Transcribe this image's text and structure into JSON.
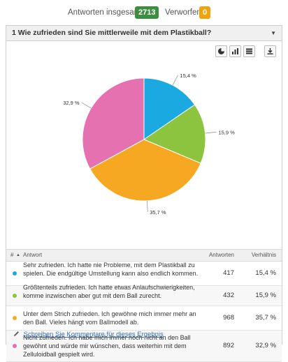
{
  "summary": {
    "responses_label": "Antworten insgesamt",
    "responses_count": "2713",
    "responses_color": "#3e8e41",
    "discarded_label": "Verworfen",
    "discarded_count": "0",
    "discarded_color": "#f0a30a"
  },
  "question": {
    "title": "1 Wie zufrieden sind Sie mittlerweile mit dem Plastikball?",
    "caret": "▼"
  },
  "toolbar": {
    "icons": [
      "pie-chart-icon",
      "bar-chart-icon",
      "table-icon",
      "download-icon"
    ]
  },
  "chart_data": {
    "type": "pie",
    "categories": [
      "Sehr zufrieden. Ich hatte nie Probleme, mit dem Plastikball zu spielen. Die endgültige Umstellung kann also endlich kommen.",
      "Größtenteils zufrieden. Ich hatte etwas Anlaufschwierigkeiten, komme inzwischen aber gut mit dem Ball zurecht.",
      "Unter dem Strich zufrieden. Ich gewöhne mich immer mehr an den Ball. Vieles hängt vom Ballmodell ab.",
      "Nicht zufrieden. Ich habe mich immer noch nicht an den Ball gewöhnt und würde mir wünschen, dass weiterhin mit dem Zelluloidball gespielt wird."
    ],
    "values": [
      15.4,
      15.9,
      35.7,
      32.9
    ],
    "labels": [
      "15,4 %",
      "15,9 %",
      "35,7 %",
      "32,9 %"
    ],
    "colors": [
      "#1ba9e1",
      "#8cc43f",
      "#f7a823",
      "#e571b0"
    ]
  },
  "table": {
    "headers": {
      "num": "#",
      "sort": "▲",
      "answer": "Antwort",
      "count": "Antworten",
      "ratio": "Verhältnis"
    },
    "rows": [
      {
        "text": "Sehr zufrieden. Ich hatte nie Probleme, mit dem Plastikball zu spielen. Die endgültige Umstellung kann also endlich kommen.",
        "count": "417",
        "pct": "15,4 %",
        "color": "#1ba9e1"
      },
      {
        "text": "Größtenteils zufrieden. Ich hatte etwas Anlaufschwierigkeiten, komme inzwischen aber gut mit dem Ball zurecht.",
        "count": "432",
        "pct": "15,9 %",
        "color": "#8cc43f"
      },
      {
        "text": "Unter dem Strich zufrieden. Ich gewöhne mich immer mehr an den Ball. Vieles hängt vom Ballmodell ab.",
        "count": "968",
        "pct": "35,7 %",
        "color": "#f7a823"
      },
      {
        "text": "Nicht zufrieden. Ich habe mich immer noch nicht an den Ball gewöhnt und würde mir wünschen, dass weiterhin mit dem Zelluloidball gespielt wird.",
        "count": "892",
        "pct": "32,9 %",
        "color": "#e571b0"
      }
    ]
  },
  "footer": {
    "link": "Schreiben Sie Kommentare für dieses Ergebnis",
    "icon": "pencil-icon"
  }
}
